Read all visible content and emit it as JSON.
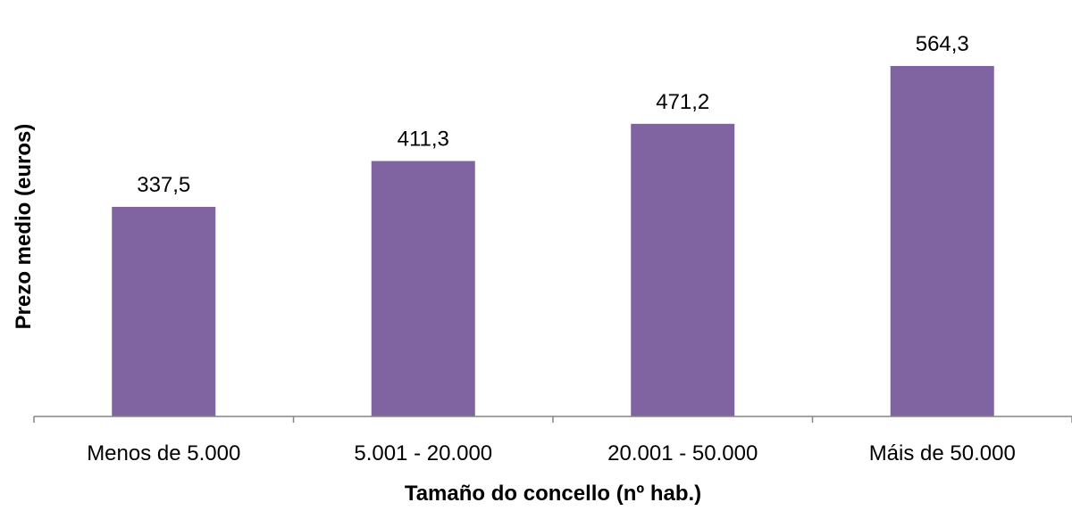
{
  "chart_data": {
    "type": "bar",
    "categories": [
      "Menos de 5.000",
      "5.001 - 20.000",
      "20.001 - 50.000",
      "Máis de 50.000"
    ],
    "values": [
      337.5,
      411.3,
      471.2,
      564.3
    ],
    "value_labels": [
      "337,5",
      "411,3",
      "471,2",
      "564,3"
    ],
    "xlabel": "Tamaño do concello (nº hab.)",
    "ylabel": "Prezo medio (euros)",
    "ylim": [
      0,
      570
    ],
    "grid": false,
    "legend": "none",
    "bar_color": "#8064A2",
    "axis_color": "#868686"
  }
}
